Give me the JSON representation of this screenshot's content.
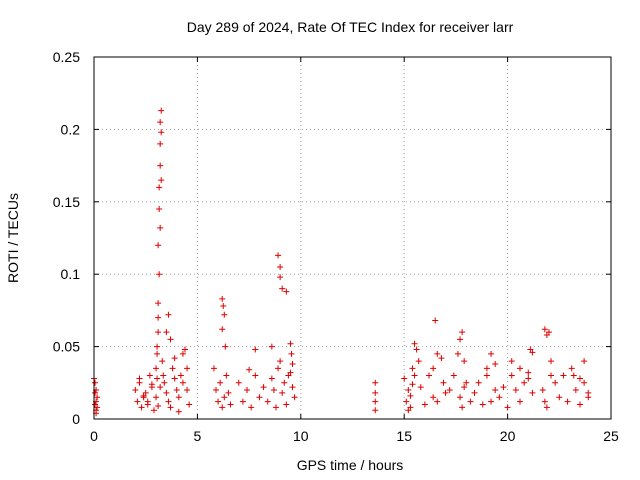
{
  "chart_data": {
    "type": "scatter",
    "title": "Day 289 of 2024, Rate Of TEC Index for receiver larr",
    "xlabel": "GPS time / hours",
    "ylabel": "ROTI / TECUs",
    "xlim": [
      0,
      25
    ],
    "ylim": [
      0,
      0.25
    ],
    "x_ticks": [
      "0",
      "5",
      "10",
      "15",
      "20",
      "25"
    ],
    "y_ticks": [
      "0",
      "0.05",
      "0.1",
      "0.15",
      "0.2",
      "0.25"
    ],
    "grid": true,
    "marker": "+",
    "colors": {
      "points": "#e00000",
      "grid": "#a0a0a0",
      "axis": "#000000"
    },
    "series": [
      {
        "values_x": [
          0.0,
          0.05,
          0.05,
          0.1,
          0.1,
          0.15,
          0.15,
          0.1,
          0.05,
          0.1,
          2.0,
          2.1,
          2.2,
          2.3,
          2.4,
          2.5,
          2.6,
          2.7,
          2.8,
          2.9,
          2.2,
          2.4,
          2.6,
          2.8,
          3.0,
          3.05,
          3.1,
          3.1,
          3.15,
          3.15,
          3.2,
          3.2,
          3.2,
          3.25,
          3.25,
          3.25,
          3.2,
          3.15,
          3.1,
          3.1,
          3.05,
          3.05,
          3.0,
          3.1,
          3.2,
          3.3,
          3.35,
          3.4,
          3.5,
          3.6,
          3.7,
          3.8,
          3.9,
          3.5,
          3.6,
          3.7,
          3.9,
          4.0,
          4.1,
          4.2,
          4.3,
          4.4,
          4.5,
          4.6,
          4.1,
          4.3,
          4.5,
          5.8,
          5.9,
          6.0,
          6.1,
          6.2,
          6.3,
          6.4,
          6.5,
          6.6,
          6.2,
          6.25,
          6.3,
          6.2,
          6.35,
          7.0,
          7.2,
          7.4,
          7.6,
          7.8,
          8.0,
          8.2,
          7.8,
          7.5,
          8.4,
          8.6,
          8.7,
          8.8,
          8.9,
          9.0,
          9.1,
          9.2,
          9.3,
          9.4,
          9.5,
          9.6,
          9.7,
          8.9,
          9.0,
          9.0,
          9.1,
          9.3,
          9.5,
          9.55,
          8.6,
          9.6,
          13.6,
          13.6,
          13.6,
          13.6,
          15.0,
          15.1,
          15.2,
          15.3,
          15.4,
          15.5,
          15.6,
          15.7,
          15.3,
          15.4,
          15.2,
          15.5,
          15.8,
          16.0,
          16.2,
          16.4,
          16.6,
          16.8,
          17.0,
          16.5,
          16.9,
          16.4,
          16.6,
          17.2,
          17.4,
          17.6,
          17.7,
          17.8,
          17.9,
          18.0,
          18.2,
          17.7,
          17.8,
          17.9,
          18.4,
          18.6,
          18.8,
          19.0,
          19.2,
          19.4,
          19.0,
          19.2,
          19.4,
          19.6,
          19.8,
          20.0,
          20.2,
          20.4,
          20.6,
          20.8,
          21.0,
          21.2,
          20.2,
          20.6,
          21.0,
          21.1,
          21.2,
          21.7,
          21.8,
          21.9,
          22.0,
          22.1,
          21.8,
          21.9,
          22.1,
          22.3,
          22.5,
          22.7,
          22.9,
          23.1,
          23.3,
          23.5,
          23.7,
          23.9,
          23.5,
          23.7,
          23.9,
          23.2
        ],
        "values_y": [
          0.028,
          0.025,
          0.018,
          0.012,
          0.006,
          0.015,
          0.008,
          0.02,
          0.01,
          0.004,
          0.02,
          0.012,
          0.025,
          0.008,
          0.015,
          0.018,
          0.01,
          0.03,
          0.022,
          0.006,
          0.028,
          0.016,
          0.012,
          0.024,
          0.035,
          0.05,
          0.08,
          0.12,
          0.145,
          0.16,
          0.175,
          0.19,
          0.205,
          0.213,
          0.198,
          0.165,
          0.132,
          0.1,
          0.07,
          0.06,
          0.045,
          0.028,
          0.015,
          0.009,
          0.022,
          0.04,
          0.03,
          0.025,
          0.06,
          0.072,
          0.055,
          0.035,
          0.042,
          0.018,
          0.012,
          0.008,
          0.028,
          0.02,
          0.015,
          0.03,
          0.045,
          0.048,
          0.02,
          0.01,
          0.005,
          0.025,
          0.035,
          0.035,
          0.02,
          0.012,
          0.025,
          0.008,
          0.015,
          0.03,
          0.018,
          0.01,
          0.083,
          0.078,
          0.072,
          0.062,
          0.05,
          0.025,
          0.012,
          0.02,
          0.008,
          0.03,
          0.015,
          0.022,
          0.048,
          0.034,
          0.012,
          0.028,
          0.02,
          0.008,
          0.035,
          0.04,
          0.018,
          0.025,
          0.01,
          0.03,
          0.032,
          0.022,
          0.015,
          0.113,
          0.105,
          0.098,
          0.09,
          0.088,
          0.052,
          0.045,
          0.05,
          0.038,
          0.025,
          0.018,
          0.012,
          0.006,
          0.028,
          0.012,
          0.02,
          0.008,
          0.035,
          0.052,
          0.048,
          0.04,
          0.016,
          0.024,
          0.006,
          0.03,
          0.022,
          0.01,
          0.03,
          0.015,
          0.045,
          0.042,
          0.018,
          0.068,
          0.025,
          0.035,
          0.012,
          0.02,
          0.03,
          0.045,
          0.055,
          0.06,
          0.04,
          0.025,
          0.012,
          0.015,
          0.008,
          0.022,
          0.018,
          0.025,
          0.01,
          0.035,
          0.045,
          0.02,
          0.03,
          0.012,
          0.038,
          0.015,
          0.022,
          0.008,
          0.03,
          0.02,
          0.012,
          0.025,
          0.028,
          0.018,
          0.04,
          0.035,
          0.032,
          0.048,
          0.046,
          0.02,
          0.062,
          0.058,
          0.06,
          0.03,
          0.012,
          0.008,
          0.04,
          0.025,
          0.015,
          0.03,
          0.012,
          0.035,
          0.02,
          0.028,
          0.04,
          0.018,
          0.01,
          0.025,
          0.015,
          0.03
        ]
      }
    ]
  }
}
